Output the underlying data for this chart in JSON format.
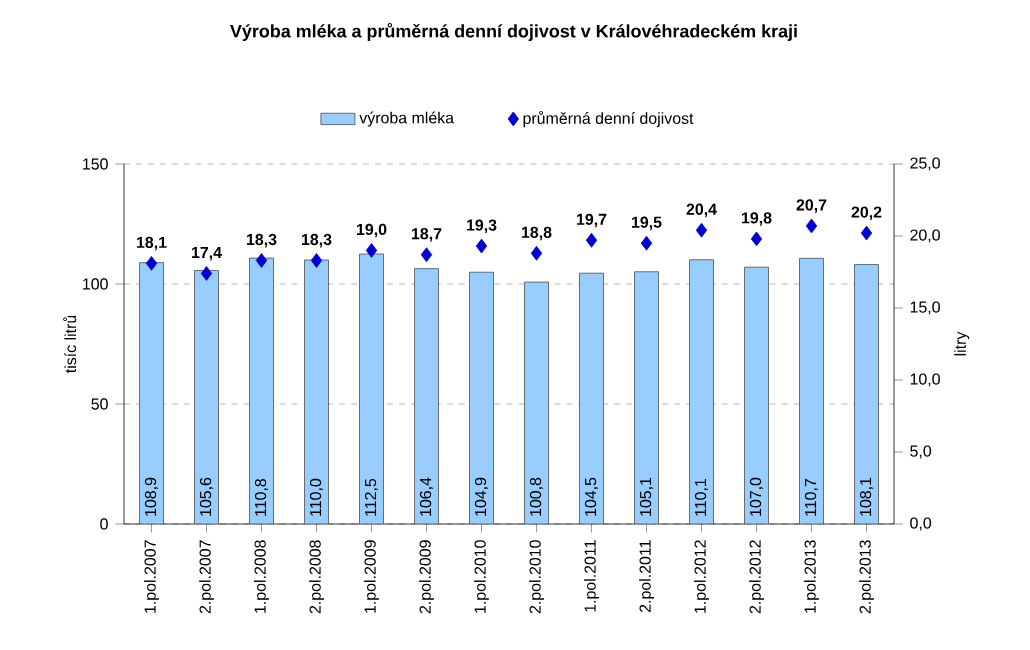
{
  "chart_data": {
    "type": "bar",
    "title": "Výroba mléka a průměrná denní dojivost v Královéhradeckém kraji",
    "categories": [
      "1.pol.2007",
      "2.pol.2007",
      "1.pol.2008",
      "2.pol.2008",
      "1.pol.2009",
      "2.pol.2009",
      "1.pol.2010",
      "2.pol.2010",
      "1.pol.2011",
      "2.pol.2011",
      "1.pol.2012",
      "2.pol.2012",
      "1.pol.2013",
      "2.pol.2013"
    ],
    "series": [
      {
        "name": "výroba mléka",
        "color": "#99ccff",
        "values": [
          108.9,
          105.6,
          110.8,
          110.0,
          112.5,
          106.4,
          104.9,
          100.8,
          104.5,
          105.1,
          110.1,
          107.0,
          110.7,
          108.1
        ],
        "value_labels": [
          "108,9",
          "105,6",
          "110,8",
          "110,0",
          "112,5",
          "106,4",
          "104,9",
          "100,8",
          "104,5",
          "105,1",
          "110,1",
          "107,0",
          "110,7",
          "108,1"
        ]
      },
      {
        "name": "průměrná denní dojivost",
        "type": "scatter",
        "axis": "y2",
        "color": "#0000cc",
        "values": [
          18.1,
          17.4,
          18.3,
          18.3,
          19.0,
          18.7,
          19.3,
          18.8,
          19.7,
          19.5,
          20.4,
          19.8,
          20.7,
          20.2
        ],
        "value_labels": [
          "18,1",
          "17,4",
          "18,3",
          "18,3",
          "19,0",
          "18,7",
          "19,3",
          "18,8",
          "19,7",
          "19,5",
          "20,4",
          "19,8",
          "20,7",
          "20,2"
        ]
      }
    ],
    "marker": "diamond",
    "ylabel": "tisíc litrů",
    "y2label": "litry",
    "ylim": [
      0,
      150
    ],
    "yticks": [
      0,
      50,
      100,
      150
    ],
    "y2lim": [
      0,
      25
    ],
    "y2ticks": [
      {
        "value": 0,
        "label": "0,0"
      },
      {
        "value": 5,
        "label": "5,0"
      },
      {
        "value": 10,
        "label": "10,0"
      },
      {
        "value": 15,
        "label": "15,0"
      },
      {
        "value": 20,
        "label": "20,0"
      },
      {
        "value": 25,
        "label": "25,0"
      }
    ],
    "grid": "y",
    "legend": "top"
  }
}
